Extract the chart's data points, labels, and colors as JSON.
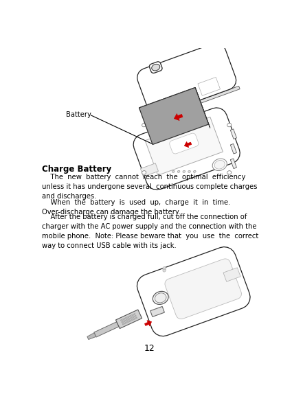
{
  "page_width": 4.25,
  "page_height": 5.87,
  "dpi": 100,
  "bg_color": "#ffffff",
  "page_number": "12",
  "section_title": "Charge Battery",
  "para1": "    The  new  battery  cannot  reach  the  optimal  efficiency\nunless it has undergone several  continuous complete charges\nand discharges.",
  "para2": "    When  the  battery  is  used  up,  charge  it  in  time.\nOver-discharge can damage the battery.",
  "para3": "    After the battery is charged full, cut off the connection of\ncharger with the AC power supply and the connection with the\nmobile phone.  Note: Please beware that  you  use  the  correct\nway to connect USB cable with its jack.",
  "battery_label": "Battery",
  "title_fontsize": 8.5,
  "body_fontsize": 7.2,
  "label_fontsize": 7.2,
  "page_num_fontsize": 9,
  "text_color": "#000000",
  "red_color": "#cc0000",
  "gray_bat": "#a0a0a0",
  "gray_bat_dark": "#808080",
  "ec_color": "#333333"
}
